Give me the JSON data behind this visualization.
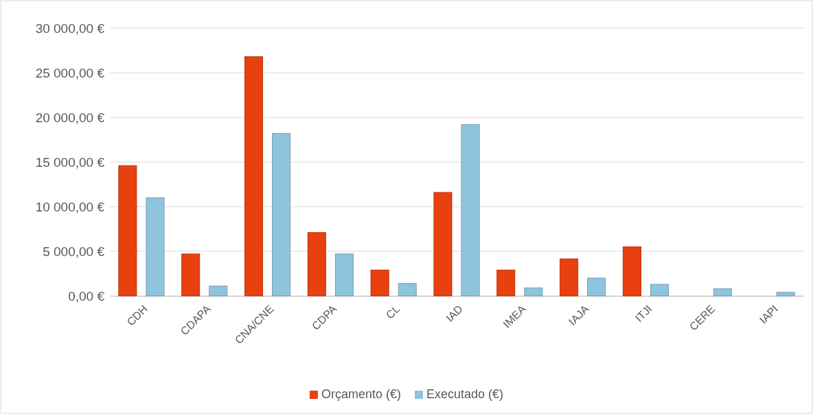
{
  "chart_data": {
    "type": "bar",
    "categories": [
      "CDH",
      "CDAPA",
      "CNA/CNE",
      "CDPA",
      "CL",
      "IAD",
      "IMEA",
      "IAJA",
      "ITJI",
      "CERE",
      "IAPI"
    ],
    "series": [
      {
        "name": "Orçamento (€)",
        "color": "#e8400f",
        "values": [
          14600,
          4700,
          26800,
          7100,
          2900,
          11600,
          2900,
          4150,
          5500,
          null,
          null
        ]
      },
      {
        "name": "Executado (€)",
        "color": "#8ec4de",
        "values": [
          11000,
          1100,
          18200,
          4700,
          1400,
          19200,
          900,
          2000,
          1300,
          800,
          400
        ]
      }
    ],
    "ylim": [
      0,
      30000
    ],
    "yticks": [
      {
        "value": 0,
        "label": "0,00 €"
      },
      {
        "value": 5000,
        "label": "5 000,00 €"
      },
      {
        "value": 10000,
        "label": "10 000,00 €"
      },
      {
        "value": 15000,
        "label": "15 000,00 €"
      },
      {
        "value": 20000,
        "label": "20 000,00 €"
      },
      {
        "value": 25000,
        "label": "25 000,00 €"
      },
      {
        "value": 30000,
        "label": "30 000,00 €"
      }
    ],
    "grid": "y",
    "legend": "bottom"
  }
}
